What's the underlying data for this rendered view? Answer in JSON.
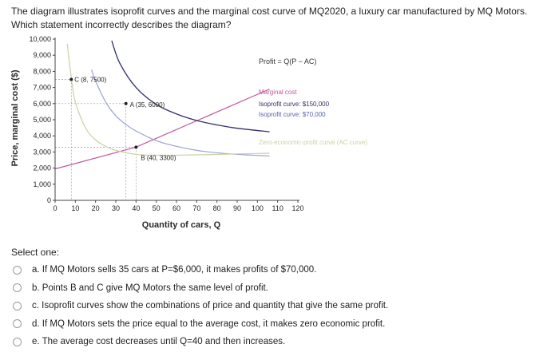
{
  "question": {
    "text": "The diagram illustrates isoprofit curves and the marginal cost curve of MQ2020, a luxury car manufactured by MQ Motors. Which statement incorrectly describes the diagram?"
  },
  "chart_data": {
    "type": "line",
    "title": "",
    "xlabel": "Quantity of cars, Q",
    "ylabel": "Price, marginal cost ($)",
    "xlim": [
      0,
      120
    ],
    "ylim": [
      0,
      10000
    ],
    "x_ticks": [
      "0",
      "10",
      "20",
      "30",
      "40",
      "50",
      "60",
      "70",
      "80",
      "90",
      "100",
      "110",
      "120"
    ],
    "y_ticks": [
      "0",
      "1,000",
      "2,000",
      "3,000",
      "4,000",
      "5,000",
      "6,000",
      "7,000",
      "8,000",
      "9,000",
      "10,000"
    ],
    "annotation": "Profit = Q(P − AC)",
    "series": [
      {
        "name": "Marginal cost",
        "color": "#c2579a",
        "x": [
          0,
          40,
          106
        ],
        "y": [
          1950,
          3300,
          6900
        ]
      },
      {
        "name": "Isoprofit curve: $150,000",
        "color": "#2f2f6e",
        "x": [
          28,
          32,
          40,
          50,
          60,
          70,
          80,
          90,
          106
        ],
        "y": [
          9900,
          8500,
          7000,
          5950,
          5360,
          4950,
          4680,
          4470,
          4250
        ]
      },
      {
        "name": "Isoprofit curve: $70,000",
        "color": "#9aa0d6",
        "x": [
          18,
          20,
          25,
          30,
          35,
          40,
          50,
          60,
          70,
          80,
          90,
          106
        ],
        "y": [
          8100,
          7400,
          6100,
          5250,
          4700,
          4300,
          3700,
          3350,
          3100,
          2950,
          2850,
          2750
        ]
      },
      {
        "name": "Zero-economic-profit curve (AC curve)",
        "color": "#c9d1a4",
        "x": [
          6,
          8,
          10,
          15,
          20,
          25,
          30,
          40,
          50,
          60,
          70,
          80,
          90,
          106
        ],
        "y": [
          9700,
          7600,
          6100,
          4500,
          3750,
          3350,
          3100,
          2850,
          2800,
          2800,
          2820,
          2850,
          2880,
          2920
        ]
      }
    ],
    "points": [
      {
        "label": "C (8, 7500)",
        "x": 8,
        "y": 7500
      },
      {
        "label": "A (35, 6000)",
        "x": 35,
        "y": 6000
      },
      {
        "label": "B (40, 3300)",
        "x": 40,
        "y": 3300
      }
    ]
  },
  "select_label": "Select one:",
  "options": [
    {
      "label": "a. If MQ Motors sells 35 cars at P=$6,000, it makes profits of $70,000."
    },
    {
      "label": "b. Points B and C give MQ Motors the same level of profit."
    },
    {
      "label": "c. Isoprofit curves show the combinations of price and quantity that give the same profit."
    },
    {
      "label": "d. If MQ Motors sets the price equal to the average cost, it makes zero economic profit."
    },
    {
      "label": "e. The average cost decreases until Q=40 and then increases."
    }
  ]
}
